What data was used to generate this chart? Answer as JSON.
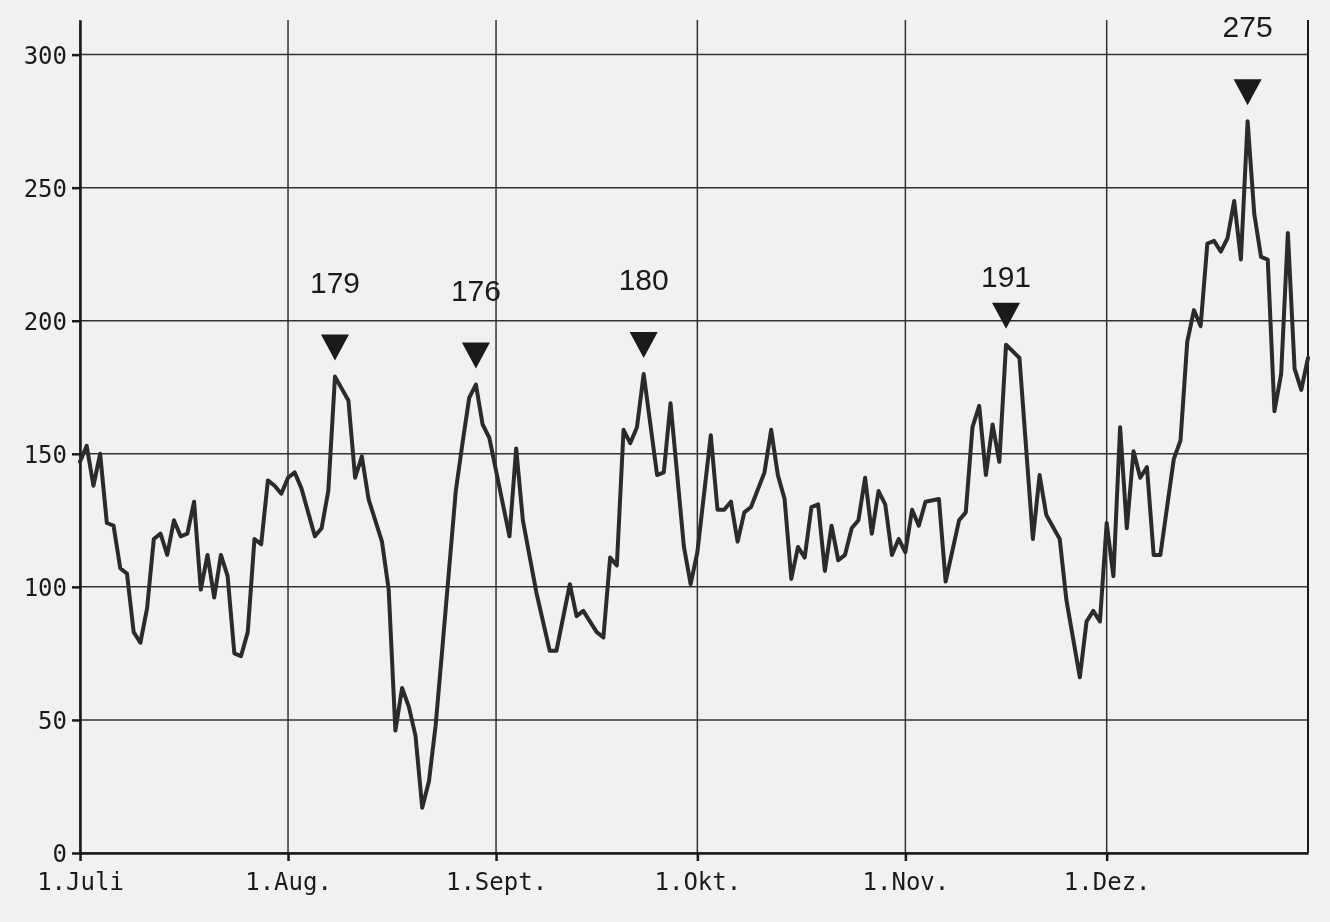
{
  "chart_data": {
    "type": "line",
    "x": [
      "--07-01",
      "--07-02",
      "--07-03",
      "--07-04",
      "--07-05",
      "--07-06",
      "--07-07",
      "--07-08",
      "--07-09",
      "--07-10",
      "--07-11",
      "--07-12",
      "--07-13",
      "--07-14",
      "--07-15",
      "--07-16",
      "--07-17",
      "--07-18",
      "--07-19",
      "--07-20",
      "--07-21",
      "--07-22",
      "--07-23",
      "--07-24",
      "--07-25",
      "--07-26",
      "--07-27",
      "--07-28",
      "--07-29",
      "--07-30",
      "--07-31",
      "--08-01",
      "--08-02",
      "--08-03",
      "--08-05",
      "--08-06",
      "--08-07",
      "--08-08",
      "--08-10",
      "--08-11",
      "--08-12",
      "--08-13",
      "--08-15",
      "--08-16",
      "--08-17",
      "--08-18",
      "--08-19",
      "--08-20",
      "--08-21",
      "--08-22",
      "--08-23",
      "--08-24",
      "--08-26",
      "--08-27",
      "--08-28",
      "--08-29",
      "--08-30",
      "--08-31",
      "--09-03",
      "--09-04",
      "--09-05",
      "--09-07",
      "--09-09",
      "--09-10",
      "--09-12",
      "--09-13",
      "--09-14",
      "--09-16",
      "--09-17",
      "--09-18",
      "--09-19",
      "--09-20",
      "--09-21",
      "--09-22",
      "--09-23",
      "--09-25",
      "--09-26",
      "--09-27",
      "--09-29",
      "--09-30",
      "--10-01",
      "--10-03",
      "--10-04",
      "--10-05",
      "--10-06",
      "--10-07",
      "--10-08",
      "--10-09",
      "--10-11",
      "--10-12",
      "--10-13",
      "--10-14",
      "--10-15",
      "--10-16",
      "--10-17",
      "--10-18",
      "--10-19",
      "--10-20",
      "--10-21",
      "--10-22",
      "--10-23",
      "--10-24",
      "--10-25",
      "--10-26",
      "--10-27",
      "--10-28",
      "--10-29",
      "--10-30",
      "--10-31",
      "--11-01",
      "--11-02",
      "--11-03",
      "--11-04",
      "--11-06",
      "--11-07",
      "--11-09",
      "--11-10",
      "--11-11",
      "--11-12",
      "--11-13",
      "--11-14",
      "--11-15",
      "--11-16",
      "--11-18",
      "--11-20",
      "--11-21",
      "--11-22",
      "--11-24",
      "--11-25",
      "--11-27",
      "--11-28",
      "--11-29",
      "--11-30",
      "--12-01",
      "--12-02",
      "--12-03",
      "--12-04",
      "--12-05",
      "--12-06",
      "--12-07",
      "--12-08",
      "--12-09",
      "--12-11",
      "--12-12",
      "--12-13",
      "--12-14",
      "--12-15",
      "--12-16",
      "--12-17",
      "--12-18",
      "--12-19",
      "--12-20",
      "--12-21",
      "--12-22",
      "--12-23",
      "--12-24",
      "--12-25",
      "--12-26",
      "--12-27",
      "--12-28",
      "--12-29",
      "--12-30",
      "--12-31"
    ],
    "series": [
      {
        "color": "#2b2b2b",
        "values": [
          147,
          153,
          138,
          150,
          124,
          123,
          107,
          105,
          83,
          79,
          92,
          118,
          120,
          112,
          125,
          119,
          120,
          132,
          99,
          112,
          96,
          112,
          104,
          75,
          74,
          83,
          118,
          116,
          140,
          138,
          135,
          141,
          143,
          137,
          119,
          122,
          136,
          179,
          170,
          141,
          149,
          133,
          117,
          99,
          46,
          62,
          55,
          44,
          17,
          27,
          48,
          77,
          136,
          154,
          171,
          176,
          161,
          156,
          119,
          152,
          125,
          98,
          76,
          76,
          101,
          89,
          91,
          83,
          81,
          111,
          108,
          159,
          154,
          160,
          180,
          142,
          143,
          169,
          115,
          101,
          113,
          157,
          129,
          129,
          132,
          117,
          128,
          130,
          143,
          159,
          142,
          133,
          103,
          115,
          111,
          130,
          131,
          106,
          123,
          110,
          112,
          122,
          125,
          141,
          120,
          136,
          131,
          112,
          118,
          113,
          129,
          123,
          132,
          133,
          102,
          125,
          128,
          160,
          168,
          142,
          161,
          147,
          191,
          186,
          118,
          142,
          127,
          118,
          95,
          66,
          87,
          91,
          87,
          124,
          104,
          160,
          122,
          151,
          141,
          145,
          112,
          112,
          148,
          155,
          192,
          204,
          198,
          229,
          230,
          226,
          231,
          245,
          223,
          275,
          240,
          224,
          223,
          166,
          180,
          233,
          182,
          174,
          186
        ]
      }
    ],
    "xlim": [
      "--07-01",
      "--12-31"
    ],
    "xticks": [
      {
        "value": "--07-01",
        "label": "1.Juli"
      },
      {
        "value": "--08-01",
        "label": "1.Aug."
      },
      {
        "value": "--09-01",
        "label": "1.Sept."
      },
      {
        "value": "--10-01",
        "label": "1.Okt."
      },
      {
        "value": "--11-01",
        "label": "1.Nov."
      },
      {
        "value": "--12-01",
        "label": "1.Dez."
      }
    ],
    "ylim": [
      0,
      313
    ],
    "yticks": [
      0,
      50,
      100,
      150,
      200,
      250,
      300
    ],
    "grid": true,
    "marker": "none",
    "line_style": "solid",
    "annotations": [
      {
        "text": "179",
        "x": "--08-08",
        "y": 179
      },
      {
        "text": "176",
        "x": "--08-29",
        "y": 176
      },
      {
        "text": "180",
        "x": "--09-23",
        "y": 180
      },
      {
        "text": "191",
        "x": "--11-16",
        "y": 191
      },
      {
        "text": "275",
        "x": "--12-22",
        "y": 275
      }
    ]
  }
}
